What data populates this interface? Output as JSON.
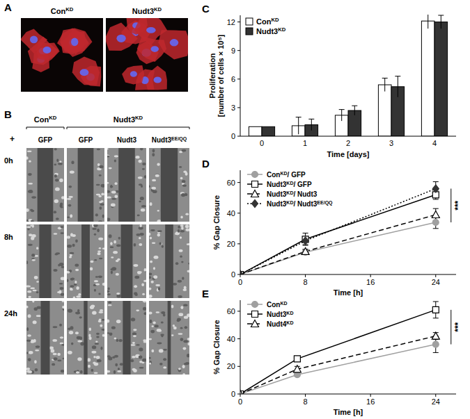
{
  "chart_data": [
    {
      "type": "bar",
      "title": "C",
      "x_label": "Time [days]",
      "y_label": "Proliferation [number of cells × 10⁵]",
      "categories": [
        "0",
        "1",
        "2",
        "3",
        "4"
      ],
      "series": [
        {
          "name": "ConKD",
          "color": "#ffffff",
          "values": [
            1,
            1.1,
            2.2,
            5.4,
            12.1
          ],
          "error": [
            0,
            0.9,
            0.6,
            0.7,
            0.8
          ]
        },
        {
          "name": "Nudt3KD",
          "color": "#333333",
          "values": [
            1,
            1.2,
            2.7,
            5.2,
            12
          ],
          "error": [
            0,
            0.6,
            0.5,
            1.1,
            0.7
          ]
        }
      ],
      "ylim": [
        0,
        12.7
      ],
      "yticks": [
        0,
        3,
        6,
        9,
        12
      ],
      "legend": "top-left"
    },
    {
      "type": "line",
      "title": "D",
      "x_label": "Time [h]",
      "y_label": "% Gap Closure",
      "x": [
        0,
        8,
        24
      ],
      "xlim": [
        0,
        26.5
      ],
      "xticks": [
        0,
        8,
        16,
        24
      ],
      "ylim": [
        0,
        68
      ],
      "yticks": [
        0,
        20,
        40,
        60
      ],
      "legend": "top-left",
      "annotation": "***",
      "series": [
        {
          "name": "ConKD/ GFP",
          "color": "#a0a0a0",
          "marker": "circle",
          "line_style": "solid",
          "values": [
            0,
            14.5,
            34
          ],
          "error": [
            0,
            1.5,
            4
          ]
        },
        {
          "name": "Nudt3KD/ GFP",
          "color": "#000000",
          "marker": "square-open",
          "line_style": "solid",
          "values": [
            0,
            23,
            52
          ],
          "error": [
            0,
            4,
            3
          ]
        },
        {
          "name": "Nudt3KD/ Nudt3",
          "color": "#555555",
          "marker": "triangle-open",
          "line_style": "dashed",
          "values": [
            0,
            15,
            39
          ],
          "error": [
            0,
            1.5,
            4
          ]
        },
        {
          "name": "Nudt3KD/ Nudt3EE/QQ",
          "color": "#333333",
          "marker": "diamond",
          "line_style": "dotted",
          "values": [
            0,
            22,
            56
          ],
          "error": [
            0,
            2.5,
            4.5
          ]
        }
      ]
    },
    {
      "type": "line",
      "title": "E",
      "x_label": "Time [h]",
      "y_label": "% Gap Closure",
      "x": [
        0,
        7,
        24
      ],
      "xlim": [
        0,
        26.5
      ],
      "xticks": [
        0,
        8,
        16,
        24
      ],
      "ylim": [
        0,
        68
      ],
      "yticks": [
        0,
        20,
        40,
        60
      ],
      "legend": "top-left",
      "annotation": "***",
      "series": [
        {
          "name": "ConKD",
          "color": "#a0a0a0",
          "marker": "circle",
          "line_style": "solid",
          "values": [
            0,
            14,
            36
          ],
          "error": [
            0,
            1,
            6
          ]
        },
        {
          "name": "Nudt3KD",
          "color": "#000000",
          "marker": "square-open",
          "line_style": "solid",
          "values": [
            0,
            25.5,
            61
          ],
          "error": [
            0,
            1.5,
            6
          ]
        },
        {
          "name": "Nudt4KD",
          "color": "#555555",
          "marker": "triangle-open",
          "line_style": "dashed",
          "values": [
            0,
            18,
            42
          ],
          "error": [
            0,
            2,
            2.5
          ]
        }
      ]
    }
  ],
  "panel_a": {
    "label": "A",
    "columns": [
      "ConKD",
      "Nudt3KD"
    ]
  },
  "panel_b": {
    "label": "B",
    "groups": [
      "ConKD",
      "Nudt3KD"
    ],
    "prefix": "+",
    "columns": [
      "GFP",
      "GFP",
      "Nudt3",
      "Nudt3EE/QQ"
    ],
    "rows": [
      "0h",
      "8h",
      "24h"
    ]
  }
}
